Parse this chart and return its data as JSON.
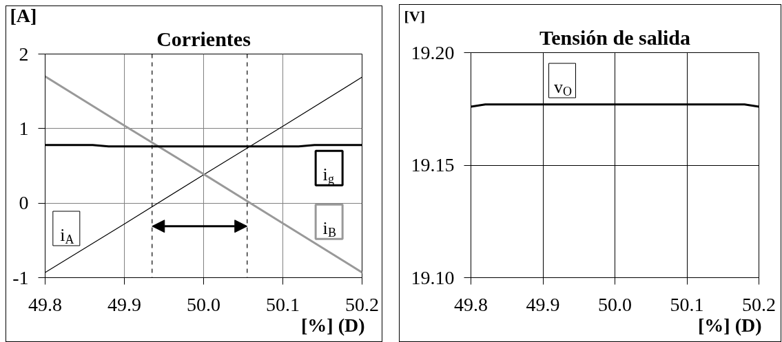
{
  "chart_data": [
    {
      "type": "line",
      "title": "Corrientes",
      "ylabel": "[A]",
      "xlabel": "[%] (D)",
      "xlim": [
        49.8,
        50.2
      ],
      "xticks": [
        49.8,
        49.9,
        {
          "value": 50,
          "label": "50.0"
        },
        50.1,
        50.2
      ],
      "ylim": [
        -1,
        2
      ],
      "yticks": [
        -1,
        0,
        1,
        2
      ],
      "grid": true,
      "series": [
        {
          "name": "i$_{A}$",
          "color": "#000000",
          "x": [
            49.8,
            49.9,
            50.0,
            50.1,
            50.2
          ],
          "values": [
            -0.93,
            -0.28,
            0.38,
            1.03,
            1.69
          ]
        },
        {
          "name": "i$_{B}$",
          "color": "#999999",
          "x": [
            49.8,
            49.9,
            50.0,
            50.1,
            50.2
          ],
          "values": [
            1.7,
            1.04,
            0.39,
            -0.27,
            -0.93
          ]
        },
        {
          "name": "i$_{g}$",
          "color": "#000000",
          "x": [
            49.8,
            49.86,
            49.88,
            50.12,
            50.14,
            50.2
          ],
          "values": [
            0.78,
            0.78,
            0.76,
            0.76,
            0.78,
            0.78
          ]
        }
      ],
      "ref_lines": [
        {
          "axis": "x",
          "value": 49.935,
          "color": "#000000",
          "line_style": "dashed"
        },
        {
          "axis": "x",
          "value": 50.055,
          "color": "#000000",
          "line_style": "dashed"
        }
      ]
    },
    {
      "type": "line",
      "title": "Tensión de salida",
      "ylabel": "[V]",
      "xlabel": "[%] (D)",
      "xlim": [
        49.8,
        50.2
      ],
      "xticks": [
        49.8,
        49.9,
        {
          "value": 50,
          "label": "50.0"
        },
        50.1,
        50.2
      ],
      "ylim": [
        19.1,
        19.2
      ],
      "yticks": [
        {
          "value": 19.1,
          "label": "19.10"
        },
        19.15,
        {
          "value": 19.2,
          "label": "19.20"
        }
      ],
      "grid": true,
      "series": [
        {
          "name": "v$_{O}$",
          "color": "#000000",
          "x": [
            49.8,
            49.82,
            50.18,
            50.2
          ],
          "values": [
            19.176,
            19.177,
            19.177,
            19.176
          ]
        }
      ]
    }
  ]
}
